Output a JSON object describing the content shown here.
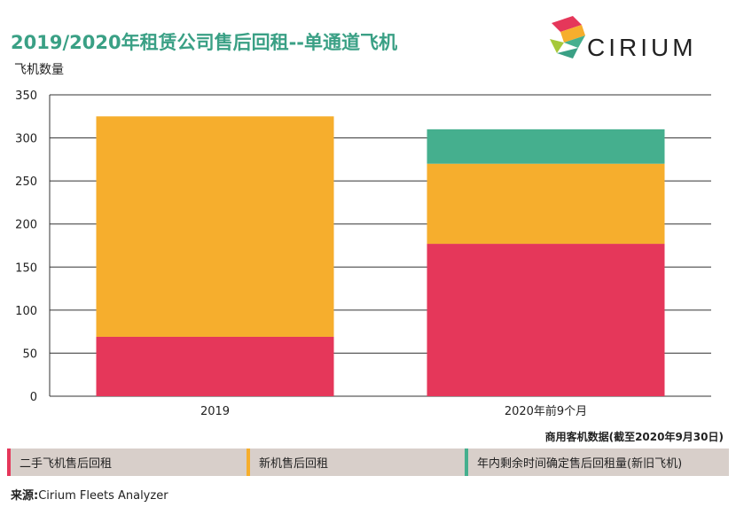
{
  "header": {
    "title": "2019/2020年租赁公司售后回租--单通道飞机",
    "y_axis_label": "飞机数量",
    "brand": "CIRIUM"
  },
  "note": "商用客机数据(截至2020年9月30日)",
  "source": {
    "prefix": "来源:",
    "text": "Cirium Fleets Analyzer"
  },
  "colors": {
    "red": "#e5375a",
    "orange": "#f6ae2d",
    "green": "#45af8e",
    "title": "#3aa085",
    "legend_bg": "#d8cfca"
  },
  "chart_data": {
    "type": "bar",
    "stacked": true,
    "title": "2019/2020年租赁公司售后回租--单通道飞机",
    "xlabel": "",
    "ylabel": "飞机数量",
    "categories": [
      "2019",
      "2020年前9个月"
    ],
    "series": [
      {
        "name": "二手飞机售后回租",
        "color": "#e5375a",
        "values": [
          69,
          177
        ]
      },
      {
        "name": "新机售后回租",
        "color": "#f6ae2d",
        "values": [
          256,
          93
        ]
      },
      {
        "name": "年内剩余时间确定售后回租量(新旧飞机)",
        "color": "#45af8e",
        "values": [
          0,
          40
        ]
      }
    ],
    "ylim": [
      0,
      350
    ],
    "yticks": [
      0,
      50,
      100,
      150,
      200,
      250,
      300,
      350
    ],
    "grid": true,
    "legend_position": "bottom"
  }
}
